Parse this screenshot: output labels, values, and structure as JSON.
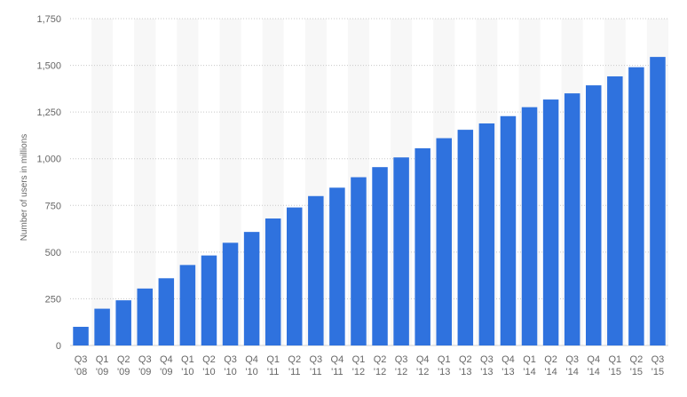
{
  "chart_data": {
    "type": "bar",
    "ylabel": "Number of users in millions",
    "xlabel": "",
    "ylim": [
      0,
      1750
    ],
    "yticks": [
      0,
      250,
      500,
      750,
      1000,
      1250,
      1500,
      1750
    ],
    "ytick_labels": [
      "0",
      "250",
      "500",
      "750",
      "1,000",
      "1,250",
      "1,500",
      "1,750"
    ],
    "grid": "horizontal dotted",
    "bar_color": "#2f72de",
    "categories": [
      [
        "Q3",
        "'08"
      ],
      [
        "Q1",
        "'09"
      ],
      [
        "Q2",
        "'09"
      ],
      [
        "Q3",
        "'09"
      ],
      [
        "Q4",
        "'09"
      ],
      [
        "Q1",
        "'10"
      ],
      [
        "Q2",
        "'10"
      ],
      [
        "Q3",
        "'10"
      ],
      [
        "Q4",
        "'10"
      ],
      [
        "Q1",
        "'11"
      ],
      [
        "Q2",
        "'11"
      ],
      [
        "Q3",
        "'11"
      ],
      [
        "Q4",
        "'11"
      ],
      [
        "Q1",
        "'12"
      ],
      [
        "Q2",
        "'12"
      ],
      [
        "Q3",
        "'12"
      ],
      [
        "Q4",
        "'12"
      ],
      [
        "Q1",
        "'13"
      ],
      [
        "Q2",
        "'13"
      ],
      [
        "Q3",
        "'13"
      ],
      [
        "Q4",
        "'13"
      ],
      [
        "Q1",
        "'14"
      ],
      [
        "Q2",
        "'14"
      ],
      [
        "Q3",
        "'14"
      ],
      [
        "Q4",
        "'14"
      ],
      [
        "Q1",
        "'15"
      ],
      [
        "Q2",
        "'15"
      ],
      [
        "Q3",
        "'15"
      ]
    ],
    "values": [
      100,
      197,
      242,
      305,
      360,
      431,
      482,
      550,
      608,
      680,
      739,
      800,
      845,
      901,
      955,
      1007,
      1056,
      1110,
      1155,
      1189,
      1228,
      1276,
      1317,
      1350,
      1393,
      1441,
      1490,
      1545
    ]
  }
}
